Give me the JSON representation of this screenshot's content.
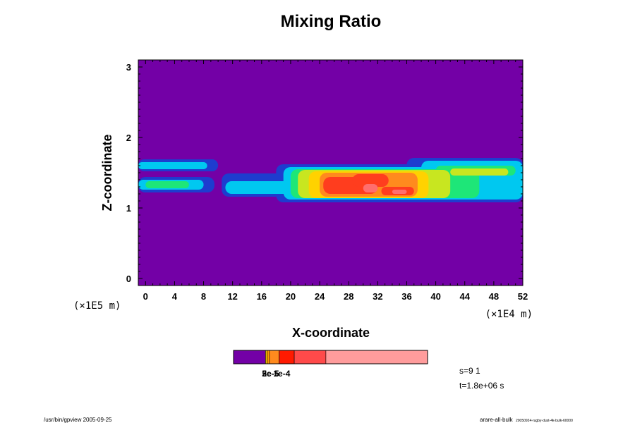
{
  "chart_data": {
    "type": "heatmap",
    "title": "Mixing Ratio",
    "xlabel": "X-coordinate",
    "ylabel": "Z-coordinate",
    "x_unit_label": "(×1E4 m)",
    "y_unit_label": "(×1E5 m)",
    "xlim": [
      -1,
      52
    ],
    "ylim": [
      -0.1,
      3.1
    ],
    "x_ticks": [
      "0",
      "4",
      "8",
      "12",
      "16",
      "20",
      "24",
      "28",
      "32",
      "36",
      "40",
      "44",
      "48",
      "52"
    ],
    "y_ticks": [
      "0",
      "1",
      "2",
      "3"
    ],
    "background_color": "#7300a6",
    "layers": [
      {
        "color": "#1e3ccf",
        "regions": [
          {
            "x": [
              -1,
              10
            ],
            "z": [
              1.52,
              1.69
            ]
          },
          {
            "x": [
              -1,
              9.5
            ],
            "z": [
              1.22,
              1.44
            ]
          },
          {
            "x": [
              10.5,
              52
            ],
            "z": [
              1.16,
              1.49
            ]
          },
          {
            "x": [
              18,
              52
            ],
            "z": [
              1.08,
              1.62
            ]
          },
          {
            "x": [
              36,
              52
            ],
            "z": [
              1.44,
              1.71
            ]
          },
          {
            "x": [
              47,
              52
            ],
            "z": [
              1.18,
              1.46
            ]
          }
        ]
      },
      {
        "color": "#00c8f0",
        "regions": [
          {
            "x": [
              -1,
              8.5
            ],
            "z": [
              1.55,
              1.65
            ]
          },
          {
            "x": [
              -1,
              8
            ],
            "z": [
              1.26,
              1.4
            ]
          },
          {
            "x": [
              11,
              20
            ],
            "z": [
              1.2,
              1.38
            ]
          },
          {
            "x": [
              19,
              52
            ],
            "z": [
              1.12,
              1.58
            ]
          },
          {
            "x": [
              38,
              52
            ],
            "z": [
              1.46,
              1.67
            ]
          },
          {
            "x": [
              48,
              52
            ],
            "z": [
              1.22,
              1.42
            ]
          }
        ]
      },
      {
        "color": "#1ee678",
        "regions": [
          {
            "x": [
              0,
              6
            ],
            "z": [
              1.28,
              1.38
            ]
          },
          {
            "x": [
              20,
              46
            ],
            "z": [
              1.14,
              1.55
            ]
          },
          {
            "x": [
              40,
              51
            ],
            "z": [
              1.46,
              1.6
            ]
          }
        ]
      },
      {
        "color": "#c8e620",
        "regions": [
          {
            "x": [
              21,
              42
            ],
            "z": [
              1.14,
              1.54
            ]
          },
          {
            "x": [
              42,
              50
            ],
            "z": [
              1.46,
              1.56
            ]
          }
        ]
      },
      {
        "color": "#ffd200",
        "regions": [
          {
            "x": [
              22.5,
              39
            ],
            "z": [
              1.14,
              1.52
            ]
          }
        ]
      },
      {
        "color": "#ff8a1e",
        "regions": [
          {
            "x": [
              24,
              37.5
            ],
            "z": [
              1.16,
              1.5
            ]
          }
        ]
      },
      {
        "color": "#ff3d1e",
        "regions": [
          {
            "x": [
              24.5,
              32
            ],
            "z": [
              1.2,
              1.44
            ]
          },
          {
            "x": [
              32.5,
              37
            ],
            "z": [
              1.18,
              1.3
            ]
          },
          {
            "x": [
              28.5,
              33.5
            ],
            "z": [
              1.3,
              1.48
            ]
          }
        ]
      },
      {
        "color": "#ff6e6e",
        "regions": [
          {
            "x": [
              30,
              32
            ],
            "z": [
              1.22,
              1.34
            ]
          },
          {
            "x": [
              34,
              36
            ],
            "z": [
              1.2,
              1.26
            ]
          }
        ]
      }
    ],
    "colorbar": {
      "segments": [
        {
          "color": "#7300a6",
          "fraction": 0.165
        },
        {
          "color": "#ffd200",
          "fraction": 0.008
        },
        {
          "color": "#ff9a00",
          "fraction": 0.012
        },
        {
          "color": "#ff8a1e",
          "fraction": 0.05
        },
        {
          "color": "#ff1a00",
          "fraction": 0.078
        },
        {
          "color": "#ff4a4a",
          "fraction": 0.163
        },
        {
          "color": "#ff9c9c",
          "fraction": 0.524
        }
      ],
      "tick_label": "1e-4",
      "tick_label_overlap": [
        "2e-5",
        "3e-5",
        "5e-5"
      ]
    }
  },
  "info": {
    "step": "s=9 1",
    "time": "t=1.8e+06 s"
  },
  "footer": {
    "left": "/usr/bin/gpview 2005-09-25",
    "right": "arare-all-bulk",
    "right_small": "20050924-rugby-dust-4k-bulk-60000"
  }
}
